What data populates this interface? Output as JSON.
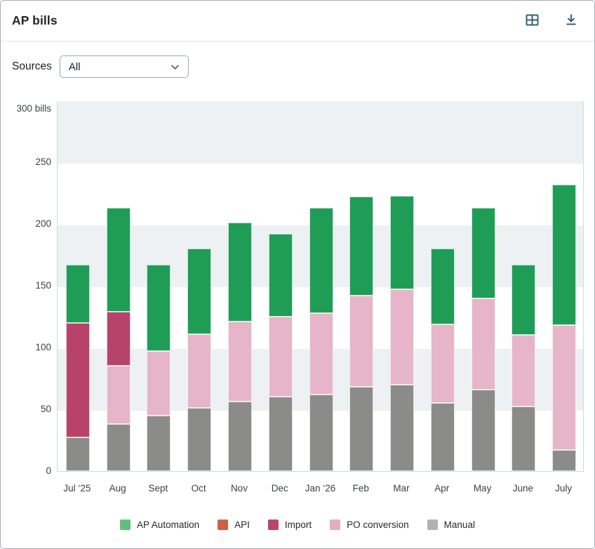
{
  "header": {
    "title": "AP bills",
    "icons": {
      "table": "table-view-icon",
      "download": "download-icon"
    },
    "icon_color": "#33607a"
  },
  "filters": {
    "sources_label": "Sources",
    "sources_value": "All"
  },
  "chart_data": {
    "type": "bar",
    "stacked": true,
    "title": "AP bills",
    "unit": "bills",
    "grid": "alternating horizontal bands every 50 units",
    "legend_position": "bottom",
    "y_axis": {
      "min": 0,
      "max": 300,
      "tick_step": 50,
      "top_label": "300 bills",
      "tick_labels": [
        "0",
        "50",
        "100",
        "150",
        "200",
        "250",
        "300 bills"
      ]
    },
    "categories": [
      "Jul ‘25",
      "Aug",
      "Sept",
      "Oct",
      "Nov",
      "Dec",
      "Jan ‘26",
      "Feb",
      "Mar",
      "Apr",
      "May",
      "June",
      "July"
    ],
    "series": [
      {
        "name": "Manual",
        "color": "#8b8b8a",
        "legend_color": "#b2b2b1",
        "values": [
          27,
          38,
          45,
          51,
          56,
          60,
          62,
          68,
          70,
          55,
          66,
          52,
          17
        ]
      },
      {
        "name": "PO conversion",
        "color": "#e6b5ca",
        "legend_color": "#e2adc6",
        "values": [
          0,
          47,
          52,
          60,
          65,
          65,
          66,
          74,
          77,
          64,
          74,
          58,
          101
        ]
      },
      {
        "name": "Import",
        "color": "#b8436a",
        "legend_color": "#bc4569",
        "values": [
          93,
          44,
          0,
          0,
          0,
          0,
          0,
          0,
          0,
          0,
          0,
          0,
          0
        ]
      },
      {
        "name": "API",
        "color": "#cd6146",
        "legend_color": "#cd6146",
        "values": [
          0,
          0,
          0,
          0,
          0,
          0,
          0,
          0,
          0,
          0,
          0,
          0,
          0
        ]
      },
      {
        "name": "AP Automation",
        "color": "#1f9d57",
        "legend_color": "#63bf7e",
        "values": [
          47,
          84,
          70,
          69,
          80,
          67,
          85,
          80,
          76,
          61,
          73,
          57,
          114
        ]
      }
    ],
    "totals": [
      167,
      213,
      167,
      180,
      201,
      192,
      213,
      222,
      223,
      180,
      213,
      167,
      232
    ],
    "legend_order": [
      "AP Automation",
      "API",
      "Import",
      "PO conversion",
      "Manual"
    ],
    "band_color": "#edf1f3"
  }
}
